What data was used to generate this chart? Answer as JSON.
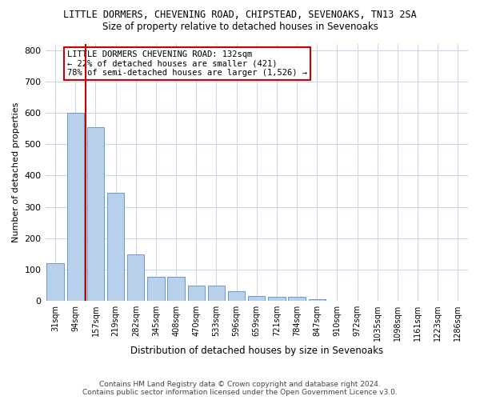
{
  "title": "LITTLE DORMERS, CHEVENING ROAD, CHIPSTEAD, SEVENOAKS, TN13 2SA",
  "subtitle": "Size of property relative to detached houses in Sevenoaks",
  "xlabel": "Distribution of detached houses by size in Sevenoaks",
  "ylabel": "Number of detached properties",
  "footer_line1": "Contains HM Land Registry data © Crown copyright and database right 2024.",
  "footer_line2": "Contains public sector information licensed under the Open Government Licence v3.0.",
  "categories": [
    "31sqm",
    "94sqm",
    "157sqm",
    "219sqm",
    "282sqm",
    "345sqm",
    "408sqm",
    "470sqm",
    "533sqm",
    "596sqm",
    "659sqm",
    "721sqm",
    "784sqm",
    "847sqm",
    "910sqm",
    "972sqm",
    "1035sqm",
    "1098sqm",
    "1161sqm",
    "1223sqm",
    "1286sqm"
  ],
  "values": [
    120,
    600,
    555,
    345,
    148,
    78,
    78,
    50,
    50,
    30,
    15,
    14,
    12,
    5,
    0,
    0,
    0,
    0,
    0,
    0,
    0
  ],
  "bar_color": "#b8d0ea",
  "bar_edge_color": "#6699cc",
  "vline_x": 1.5,
  "vline_color": "#cc0000",
  "annotation_text": "LITTLE DORMERS CHEVENING ROAD: 132sqm\n← 22% of detached houses are smaller (421)\n78% of semi-detached houses are larger (1,526) →",
  "annotation_box_color": "#ffffff",
  "annotation_box_edge": "#cc0000",
  "ylim": [
    0,
    820
  ],
  "yticks": [
    0,
    100,
    200,
    300,
    400,
    500,
    600,
    700,
    800
  ],
  "background_color": "#ffffff",
  "grid_color": "#c8d4e8"
}
